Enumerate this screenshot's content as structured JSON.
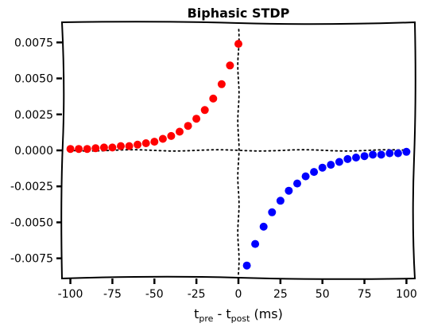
{
  "chart_data": {
    "type": "scatter",
    "title": "Biphasic STDP",
    "xlabel_parts": {
      "main_pre": "t",
      "sub_pre": "pre",
      "dash": " - t",
      "sub_post": "post",
      "unit": " (ms)"
    },
    "ylabel": "",
    "xlim": [
      -105,
      105
    ],
    "ylim": [
      -0.0089,
      0.0089
    ],
    "x_ticks": [
      -100,
      -75,
      -50,
      -25,
      0,
      25,
      50,
      75,
      100
    ],
    "x_tick_labels": [
      "-100",
      "-75",
      "-50",
      "-25",
      "0",
      "25",
      "50",
      "75",
      "100"
    ],
    "y_ticks": [
      0.0075,
      0.005,
      0.0025,
      0.0,
      -0.0025,
      -0.005,
      -0.0075
    ],
    "y_tick_labels": [
      "0.0075",
      "0.0050",
      "0.0025",
      "0.0000",
      "-0.0025",
      "-0.0050",
      "-0.0075"
    ],
    "grid": false,
    "guide_lines": "dotted lines at x = 0 and y = 0",
    "series": [
      {
        "color": "#ff0000",
        "x": [
          -100,
          -95,
          -90,
          -85,
          -80,
          -75,
          -70,
          -65,
          -60,
          -55,
          -50,
          -45,
          -40,
          -35,
          -30,
          -25,
          -20,
          -15,
          -10,
          -5,
          0
        ],
        "y": [
          0.0001,
          0.0001,
          0.0001,
          0.00015,
          0.0002,
          0.0002,
          0.0003,
          0.0003,
          0.0004,
          0.0005,
          0.0006,
          0.0008,
          0.001,
          0.0013,
          0.0017,
          0.0022,
          0.0028,
          0.0036,
          0.0046,
          0.0059,
          0.0074
        ]
      },
      {
        "color": "#0000ff",
        "x": [
          5,
          10,
          15,
          20,
          25,
          30,
          35,
          40,
          45,
          50,
          55,
          60,
          65,
          70,
          75,
          80,
          85,
          90,
          95,
          100
        ],
        "y": [
          -0.008,
          -0.0065,
          -0.0053,
          -0.0043,
          -0.0035,
          -0.0028,
          -0.0023,
          -0.0018,
          -0.0015,
          -0.0012,
          -0.001,
          -0.0008,
          -0.0006,
          -0.0005,
          -0.0004,
          -0.0003,
          -0.0003,
          -0.0002,
          -0.0002,
          -0.0001
        ]
      }
    ]
  }
}
